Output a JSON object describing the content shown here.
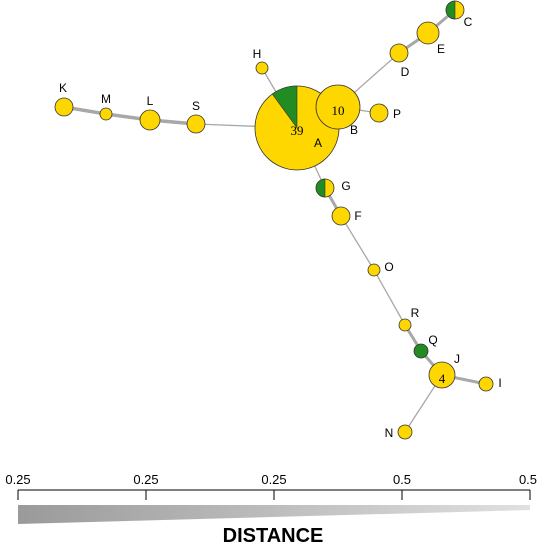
{
  "nodes": [
    {
      "id": "A",
      "label": "A",
      "count": "39",
      "green_fraction": 0.1
    },
    {
      "id": "B",
      "label": "B",
      "count": "10",
      "green_fraction": 0
    },
    {
      "id": "C",
      "label": "C",
      "count": "",
      "green_fraction": 0.5
    },
    {
      "id": "D",
      "label": "D",
      "count": "",
      "green_fraction": 0
    },
    {
      "id": "E",
      "label": "E",
      "count": "",
      "green_fraction": 0
    },
    {
      "id": "F",
      "label": "F",
      "count": "",
      "green_fraction": 0
    },
    {
      "id": "G",
      "label": "G",
      "count": "",
      "green_fraction": 0.5
    },
    {
      "id": "H",
      "label": "H",
      "count": "",
      "green_fraction": 0
    },
    {
      "id": "I",
      "label": "I",
      "count": "",
      "green_fraction": 0
    },
    {
      "id": "J",
      "label": "J",
      "count": "4",
      "green_fraction": 0
    },
    {
      "id": "K",
      "label": "K",
      "count": "",
      "green_fraction": 0
    },
    {
      "id": "L",
      "label": "L",
      "count": "",
      "green_fraction": 0
    },
    {
      "id": "M",
      "label": "M",
      "count": "",
      "green_fraction": 0
    },
    {
      "id": "N",
      "label": "N",
      "count": "",
      "green_fraction": 0
    },
    {
      "id": "O",
      "label": "O",
      "count": "",
      "green_fraction": 0
    },
    {
      "id": "P",
      "label": "P",
      "count": "",
      "green_fraction": 0
    },
    {
      "id": "Q",
      "label": "Q",
      "count": "",
      "green_fraction": 1
    },
    {
      "id": "R",
      "label": "R",
      "count": "",
      "green_fraction": 0
    },
    {
      "id": "S",
      "label": "S",
      "count": "",
      "green_fraction": 0
    }
  ],
  "edges": [
    [
      "A",
      "B"
    ],
    [
      "B",
      "P"
    ],
    [
      "B",
      "D"
    ],
    [
      "D",
      "E"
    ],
    [
      "E",
      "C"
    ],
    [
      "A",
      "H"
    ],
    [
      "A",
      "S"
    ],
    [
      "S",
      "L"
    ],
    [
      "L",
      "M"
    ],
    [
      "M",
      "K"
    ],
    [
      "A",
      "G"
    ],
    [
      "G",
      "F"
    ],
    [
      "F",
      "O"
    ],
    [
      "O",
      "R"
    ],
    [
      "R",
      "Q"
    ],
    [
      "Q",
      "J"
    ],
    [
      "J",
      "I"
    ],
    [
      "J",
      "N"
    ]
  ],
  "colors": {
    "yellow": "#ffd700",
    "green": "#228b22",
    "edge": "#a8a8a8",
    "outline": "#333333"
  },
  "scale": {
    "ticks": [
      "0.25",
      "0.25",
      "0.25",
      "0.5",
      "0.5"
    ],
    "title": "DISTANCE"
  }
}
